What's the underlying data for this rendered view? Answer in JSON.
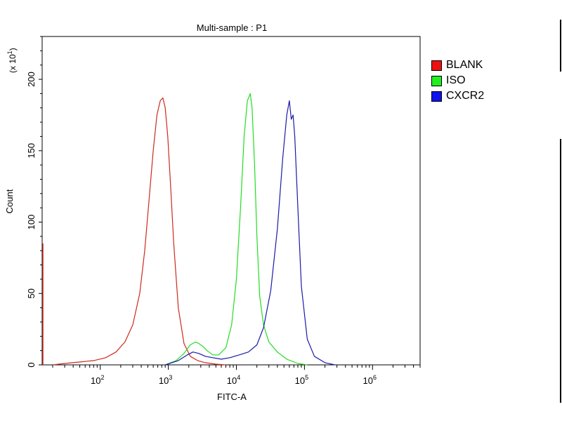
{
  "chart_data": {
    "type": "line",
    "title": "Multi-sample : P1",
    "xlabel": "FITC-A",
    "ylabel": "Count",
    "y_multiplier_label": "(x 10",
    "y_multiplier_exp": "1",
    "x_scale": "log",
    "xlim": [
      14,
      5000000
    ],
    "ylim": [
      0,
      230
    ],
    "y_ticks": [
      0,
      50,
      100,
      150,
      200
    ],
    "x_ticks": [
      {
        "value": 100,
        "base": "10",
        "exp": "2"
      },
      {
        "value": 1000,
        "base": "10",
        "exp": "3"
      },
      {
        "value": 10000,
        "base": "10",
        "exp": "4"
      },
      {
        "value": 100000,
        "base": "10",
        "exp": "5"
      },
      {
        "value": 1000000,
        "base": "10",
        "exp": "6"
      }
    ],
    "grid": false,
    "legend_position": "right",
    "series": [
      {
        "name": "BLANK",
        "color": "#cc2a1e",
        "x": [
          20,
          30,
          50,
          80,
          120,
          170,
          230,
          300,
          380,
          450,
          520,
          600,
          680,
          760,
          830,
          900,
          980,
          1080,
          1200,
          1400,
          1700,
          2100,
          2700,
          3500,
          5000,
          7000
        ],
        "y": [
          0,
          1,
          2,
          3,
          5,
          9,
          16,
          28,
          50,
          80,
          115,
          150,
          175,
          185,
          187,
          180,
          160,
          125,
          85,
          40,
          15,
          6,
          3,
          1.5,
          0.5,
          0
        ]
      },
      {
        "name": "ISO",
        "color": "#22dd22",
        "x": [
          900,
          1300,
          1700,
          2100,
          2500,
          2800,
          3200,
          3700,
          4500,
          5500,
          7000,
          8500,
          10000,
          11500,
          13000,
          14500,
          16000,
          17000,
          18500,
          20000,
          22000,
          25000,
          30000,
          40000,
          55000,
          80000,
          110000
        ],
        "y": [
          0,
          3,
          8,
          14,
          16,
          15,
          13,
          10,
          7,
          7,
          12,
          28,
          60,
          110,
          160,
          185,
          190,
          180,
          140,
          90,
          48,
          28,
          16,
          9,
          4,
          1,
          0
        ]
      },
      {
        "name": "CXCR2",
        "color": "#1a1aaa",
        "x": [
          900,
          1400,
          1900,
          2300,
          2800,
          3500,
          4500,
          6000,
          8000,
          11000,
          15000,
          20000,
          25000,
          32000,
          40000,
          48000,
          55000,
          60000,
          64000,
          68000,
          72000,
          80000,
          90000,
          110000,
          140000,
          200000,
          280000
        ],
        "y": [
          0,
          3,
          7,
          9,
          8,
          6,
          5,
          4,
          5,
          7,
          9,
          14,
          26,
          52,
          95,
          145,
          175,
          185,
          172,
          175,
          160,
          110,
          55,
          18,
          6,
          1.5,
          0
        ]
      }
    ]
  }
}
